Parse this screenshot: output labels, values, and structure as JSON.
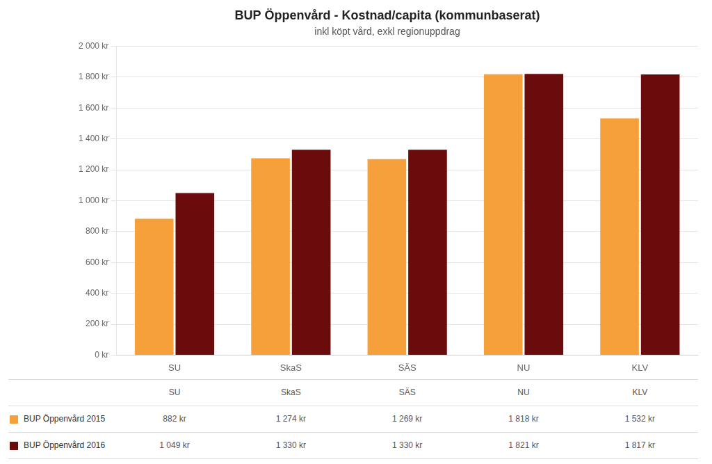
{
  "chart_data": {
    "type": "bar",
    "title": "BUP Öppenvård - Kostnad/capita (kommunbaserat)",
    "subtitle": "inkl köpt vård, exkl regionuppdrag",
    "categories": [
      "SU",
      "SkaS",
      "SÄS",
      "NU",
      "KLV"
    ],
    "series": [
      {
        "name": "BUP Öppenvård 2015",
        "color": "#F5A03A",
        "values": [
          882,
          1274,
          1269,
          1818,
          1532
        ],
        "value_labels": [
          "882 kr",
          "1 274 kr",
          "1 269 kr",
          "1 818 kr",
          "1 532 kr"
        ]
      },
      {
        "name": "BUP Öppenvård 2016",
        "color": "#6B0C0C",
        "values": [
          1049,
          1330,
          1330,
          1821,
          1817
        ],
        "value_labels": [
          "1 049 kr",
          "1 330 kr",
          "1 330 kr",
          "1 821 kr",
          "1 817 kr"
        ]
      }
    ],
    "ylim": [
      0,
      2000
    ],
    "yticks": [
      {
        "value": 0,
        "label": "0 kr"
      },
      {
        "value": 200,
        "label": "200 kr"
      },
      {
        "value": 400,
        "label": "400 kr"
      },
      {
        "value": 600,
        "label": "600 kr"
      },
      {
        "value": 800,
        "label": "800 kr"
      },
      {
        "value": 1000,
        "label": "1 000 kr"
      },
      {
        "value": 1200,
        "label": "1 200 kr"
      },
      {
        "value": 1400,
        "label": "1 400 kr"
      },
      {
        "value": 1600,
        "label": "1 600 kr"
      },
      {
        "value": 1800,
        "label": "1 800 kr"
      },
      {
        "value": 2000,
        "label": "2 000 kr"
      }
    ],
    "grid": true,
    "legend": "bottom"
  }
}
